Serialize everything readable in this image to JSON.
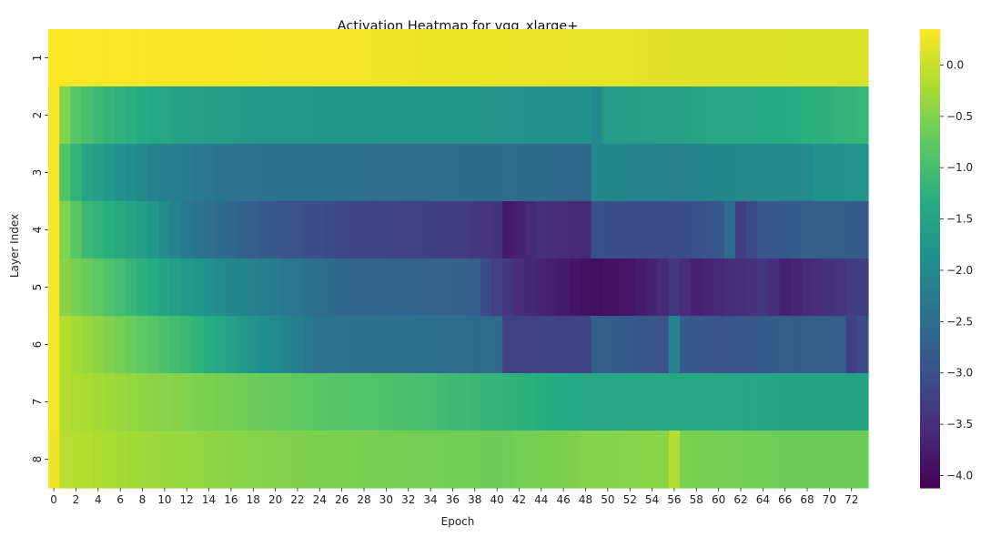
{
  "chart_data": {
    "type": "heatmap",
    "title": "Activation Heatmap for vgg_xlarge+",
    "xlabel": "Epoch",
    "ylabel": "Layer Index",
    "x_ticks": [
      "0",
      "2",
      "4",
      "6",
      "8",
      "10",
      "12",
      "14",
      "16",
      "18",
      "20",
      "22",
      "24",
      "26",
      "28",
      "30",
      "32",
      "34",
      "36",
      "38",
      "40",
      "42",
      "44",
      "46",
      "48",
      "50",
      "52",
      "54",
      "56",
      "58",
      "60",
      "62",
      "64",
      "66",
      "68",
      "70",
      "72"
    ],
    "y_ticks": [
      "1",
      "2",
      "3",
      "4",
      "5",
      "6",
      "7",
      "8"
    ],
    "epochs": 74,
    "colormap": "viridis",
    "vmin": -4.12,
    "vmax": 0.35,
    "colorbar_ticks": [
      0.0,
      -0.5,
      -1.0,
      -1.5,
      -2.0,
      -2.5,
      -3.0,
      -3.5,
      -4.0
    ],
    "colorbar_tick_labels": [
      "0.0",
      "−0.5",
      "−1.0",
      "−1.5",
      "−2.0",
      "−2.5",
      "−3.0",
      "−3.5",
      "−4.0"
    ],
    "rows": [
      {
        "layer": "1",
        "points": [
          [
            0,
            0.35
          ],
          [
            8,
            0.33
          ],
          [
            16,
            0.3
          ],
          [
            30,
            0.27
          ],
          [
            46,
            0.2
          ],
          [
            60,
            0.15
          ],
          [
            73,
            0.1
          ]
        ]
      },
      {
        "layer": "2",
        "points": [
          [
            0,
            0.3
          ],
          [
            1,
            -0.5
          ],
          [
            2,
            -0.8
          ],
          [
            4,
            -1.1
          ],
          [
            8,
            -1.35
          ],
          [
            12,
            -1.55
          ],
          [
            20,
            -1.75
          ],
          [
            40,
            -1.8
          ],
          [
            48,
            -1.85
          ],
          [
            49,
            -2.0
          ],
          [
            50,
            -1.65
          ],
          [
            60,
            -1.45
          ],
          [
            66,
            -1.35
          ],
          [
            73,
            -1.15
          ]
        ]
      },
      {
        "layer": "3",
        "points": [
          [
            0,
            0.3
          ],
          [
            1,
            -0.9
          ],
          [
            3,
            -1.5
          ],
          [
            6,
            -1.85
          ],
          [
            10,
            -2.2
          ],
          [
            16,
            -2.4
          ],
          [
            30,
            -2.5
          ],
          [
            44,
            -2.55
          ],
          [
            48,
            -2.6
          ],
          [
            49,
            -2.05
          ],
          [
            56,
            -2.15
          ],
          [
            60,
            -2.05
          ],
          [
            68,
            -2.0
          ],
          [
            69,
            -1.85
          ],
          [
            73,
            -1.8
          ]
        ]
      },
      {
        "layer": "4",
        "points": [
          [
            0,
            0.3
          ],
          [
            1,
            -0.5
          ],
          [
            3,
            -1.1
          ],
          [
            6,
            -1.4
          ],
          [
            8,
            -1.6
          ],
          [
            12,
            -2.3
          ],
          [
            18,
            -2.8
          ],
          [
            26,
            -3.15
          ],
          [
            36,
            -3.3
          ],
          [
            40,
            -3.45
          ],
          [
            41,
            -3.8
          ],
          [
            44,
            -3.5
          ],
          [
            48,
            -3.6
          ],
          [
            49,
            -3.0
          ],
          [
            56,
            -3.1
          ],
          [
            60,
            -2.9
          ],
          [
            61,
            -2.55
          ],
          [
            62,
            -3.3
          ],
          [
            64,
            -2.9
          ],
          [
            70,
            -2.75
          ],
          [
            73,
            -2.85
          ]
        ]
      },
      {
        "layer": "5",
        "points": [
          [
            0,
            0.3
          ],
          [
            1,
            -0.45
          ],
          [
            5,
            -0.9
          ],
          [
            10,
            -1.5
          ],
          [
            16,
            -2.05
          ],
          [
            26,
            -2.6
          ],
          [
            38,
            -2.75
          ],
          [
            39,
            -3.1
          ],
          [
            42,
            -3.55
          ],
          [
            48,
            -3.9
          ],
          [
            49,
            -3.95
          ],
          [
            52,
            -3.85
          ],
          [
            55,
            -3.6
          ],
          [
            56,
            -3.4
          ],
          [
            58,
            -3.7
          ],
          [
            64,
            -3.4
          ],
          [
            66,
            -3.7
          ],
          [
            73,
            -3.3
          ]
        ]
      },
      {
        "layer": "6",
        "points": [
          [
            0,
            0.3
          ],
          [
            1,
            -0.15
          ],
          [
            6,
            -0.6
          ],
          [
            12,
            -1.1
          ],
          [
            18,
            -1.8
          ],
          [
            24,
            -2.4
          ],
          [
            36,
            -2.5
          ],
          [
            40,
            -2.55
          ],
          [
            41,
            -3.25
          ],
          [
            48,
            -3.2
          ],
          [
            49,
            -2.75
          ],
          [
            55,
            -2.95
          ],
          [
            56,
            -2.1
          ],
          [
            57,
            -2.85
          ],
          [
            60,
            -2.95
          ],
          [
            66,
            -2.8
          ],
          [
            71,
            -2.75
          ],
          [
            72,
            -3.25
          ],
          [
            73,
            -3.05
          ]
        ]
      },
      {
        "layer": "7",
        "points": [
          [
            0,
            0.3
          ],
          [
            1,
            -0.15
          ],
          [
            8,
            -0.4
          ],
          [
            16,
            -0.6
          ],
          [
            24,
            -0.8
          ],
          [
            34,
            -1.0
          ],
          [
            42,
            -1.25
          ],
          [
            48,
            -1.45
          ],
          [
            56,
            -1.4
          ],
          [
            66,
            -1.5
          ],
          [
            73,
            -1.5
          ]
        ]
      },
      {
        "layer": "8",
        "points": [
          [
            0,
            0.25
          ],
          [
            1,
            -0.1
          ],
          [
            8,
            -0.3
          ],
          [
            20,
            -0.5
          ],
          [
            40,
            -0.65
          ],
          [
            48,
            -0.5
          ],
          [
            55,
            -0.45
          ],
          [
            56,
            -0.15
          ],
          [
            57,
            -0.55
          ],
          [
            66,
            -0.65
          ],
          [
            73,
            -0.65
          ]
        ]
      }
    ]
  }
}
